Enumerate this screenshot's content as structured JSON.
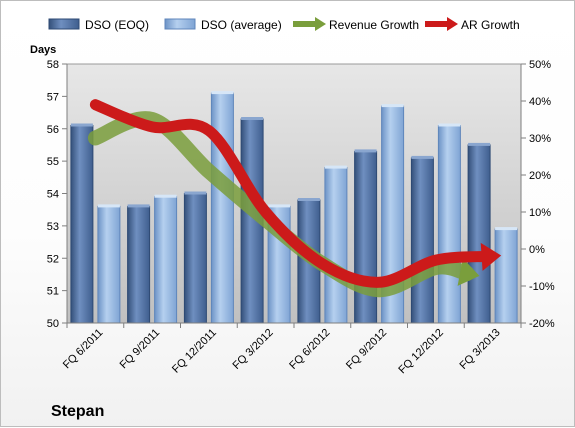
{
  "chart_data": {
    "type": "bar",
    "title": "",
    "company": "Stepan",
    "ylabel": "Days",
    "xlabel": "",
    "categories": [
      "FQ 6/2011",
      "FQ 9/2011",
      "FQ 12/2011",
      "FQ 3/2012",
      "FQ 6/2012",
      "FQ 9/2012",
      "FQ 12/2012",
      "FQ 3/2013"
    ],
    "ylim": [
      50,
      58
    ],
    "yticks": [
      50,
      51,
      52,
      53,
      54,
      55,
      56,
      57,
      58
    ],
    "y2lim": [
      -20,
      50
    ],
    "y2ticks": [
      -20,
      -10,
      0,
      10,
      20,
      30,
      40,
      50
    ],
    "y2_tick_format": "percent",
    "grid": false,
    "legend_position": "top",
    "series": [
      {
        "name": "DSO (EOQ)",
        "kind": "bar",
        "color": "#4f6ea0",
        "values": [
          56.1,
          53.6,
          54.0,
          56.3,
          53.8,
          55.3,
          55.1,
          55.5
        ]
      },
      {
        "name": "DSO (average)",
        "kind": "bar",
        "color": "#8fb3dd",
        "values": [
          53.6,
          53.9,
          57.1,
          53.6,
          54.8,
          56.7,
          56.1,
          52.9
        ]
      },
      {
        "name": "Revenue Growth",
        "kind": "arrow-line",
        "axis": "secondary",
        "color": "#7a9e3c",
        "values": [
          30,
          35,
          21,
          8,
          -4,
          -11,
          -5,
          null
        ]
      },
      {
        "name": "AR Growth",
        "kind": "arrow-line",
        "axis": "secondary",
        "color": "#cc1a1a",
        "values": [
          39,
          33,
          32,
          10,
          -4,
          -9,
          -3,
          -2
        ]
      }
    ]
  }
}
